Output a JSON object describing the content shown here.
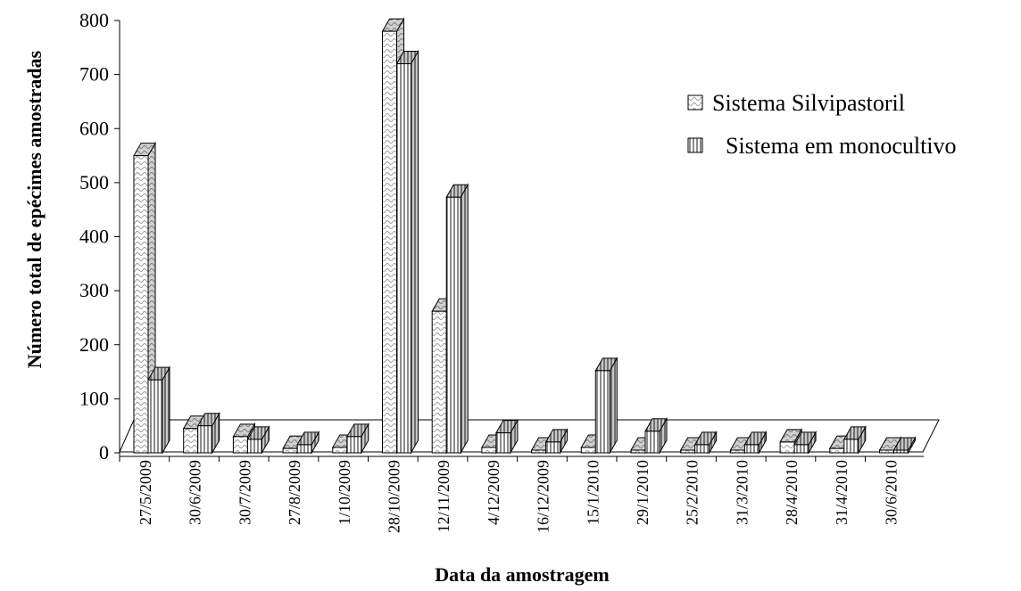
{
  "chart_data": {
    "type": "bar",
    "style": "3d-clustered-column",
    "title": "",
    "xlabel": "Data da amostragem",
    "ylabel": "Número total de epécimes amostradas",
    "ylim": [
      0,
      800
    ],
    "yticks": [
      "0",
      "100",
      "200",
      "300",
      "400",
      "500",
      "600",
      "700",
      "800"
    ],
    "grid": false,
    "legend_position": "top-right",
    "categories": [
      "27/5/2009",
      "30/6/2009",
      "30/7/2009",
      "27/8/2009",
      "1/10/2009",
      "28/10/2009",
      "12/11/2009",
      "4/12/2009",
      "16/12/2009",
      "15/1/2010",
      "29/1/2010",
      "25/2/2010",
      "31/3/2010",
      "28/4/2010",
      "31/4/2010",
      "30/6/2010"
    ],
    "series": [
      {
        "name": "Sistema Silvipastoril",
        "pattern": "wave",
        "values": [
          550,
          45,
          30,
          8,
          10,
          780,
          262,
          10,
          5,
          10,
          5,
          5,
          5,
          20,
          8,
          5
        ]
      },
      {
        "name": "Sistema em monocultivo",
        "pattern": "vertical-lines",
        "values": [
          135,
          50,
          25,
          15,
          30,
          720,
          473,
          37,
          20,
          152,
          40,
          15,
          15,
          15,
          25,
          5
        ]
      }
    ]
  }
}
